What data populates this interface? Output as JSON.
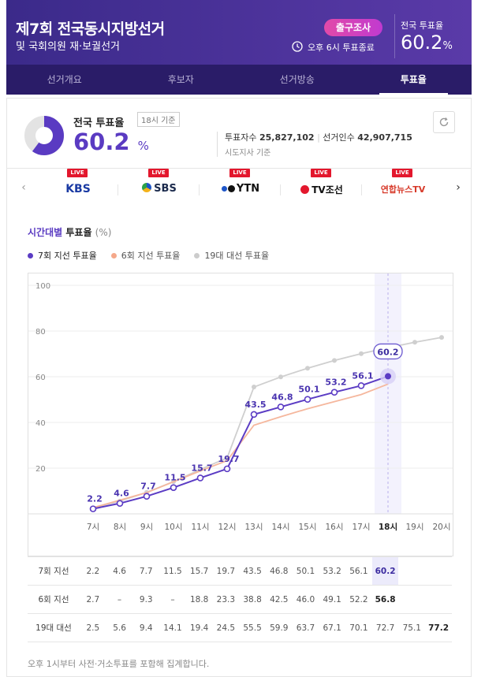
{
  "header": {
    "title": "제7회 전국동시지방선거",
    "subtitle": "및 국회의원 재·보궐선거",
    "exit_poll": "출구조사",
    "poll_close": "오후 6시 투표종료",
    "turnout_label": "전국 투표율",
    "turnout_value": "60.2",
    "turnout_unit": "%"
  },
  "tabs": [
    {
      "label": "선거개요",
      "active": false
    },
    {
      "label": "후보자",
      "active": false
    },
    {
      "label": "선거방송",
      "active": false
    },
    {
      "label": "투표율",
      "active": true
    }
  ],
  "summary": {
    "label": "전국 투표율",
    "basis": "18시 기준",
    "value": "60.2",
    "unit": "%",
    "donut_fraction": 0.602,
    "voters_label": "투표자수",
    "voters_value": "25,827,102",
    "electors_label": "선거인수",
    "electors_value": "42,907,715",
    "note": "시도지사 기준"
  },
  "broadcasters": {
    "live_label": "LIVE",
    "items": [
      {
        "name": "KBS",
        "color": "#1a3aa3"
      },
      {
        "name": "SBS",
        "color": "#1b2a4c"
      },
      {
        "name": "YTN",
        "color": "#111111"
      },
      {
        "name": "TV조선",
        "color": "#111111"
      },
      {
        "name": "연합뉴스TV",
        "color": "#d73a2a"
      }
    ]
  },
  "chart_section": {
    "title_accent": "시간대별",
    "title_rest": "투표율",
    "title_unit": "(%)",
    "legend": [
      {
        "name": "7회 지선 투표율",
        "color": "#5b3cc4"
      },
      {
        "name": "6회 지선 투표율",
        "color": "#f5a88a"
      },
      {
        "name": "19대 대선 투표율",
        "color": "#cccccc"
      }
    ],
    "footnote": "오후 1시부터 사전·거소투표를 포함해 집계합니다."
  },
  "chart_data": {
    "type": "line",
    "x": [
      "7시",
      "8시",
      "9시",
      "10시",
      "11시",
      "12시",
      "13시",
      "14시",
      "15시",
      "16시",
      "17시",
      "18시",
      "19시",
      "20시"
    ],
    "ylim": [
      0,
      100
    ],
    "yticks": [
      20,
      40,
      60,
      80,
      100
    ],
    "highlight_x": "18시",
    "highlight_value_label": "60.2",
    "series": [
      {
        "name": "7회 지선",
        "color": "#5b3cc4",
        "values": [
          2.2,
          4.6,
          7.7,
          11.5,
          15.7,
          19.7,
          43.5,
          46.8,
          50.1,
          53.2,
          56.1,
          60.2,
          null,
          null
        ]
      },
      {
        "name": "6회 지선",
        "color": "#f5b79d",
        "values": [
          2.7,
          null,
          9.3,
          null,
          18.8,
          23.3,
          38.8,
          42.5,
          46.0,
          49.1,
          52.2,
          56.8,
          null,
          null
        ]
      },
      {
        "name": "19대 대선",
        "color": "#cfcfcf",
        "values": [
          2.5,
          5.6,
          9.4,
          14.1,
          19.4,
          24.5,
          55.5,
          59.9,
          63.7,
          67.1,
          70.1,
          72.7,
          75.1,
          77.2
        ]
      }
    ]
  },
  "table": {
    "rows": [
      {
        "label": "7회 지선",
        "cells": [
          "2.2",
          "4.6",
          "7.7",
          "11.5",
          "15.7",
          "19.7",
          "43.5",
          "46.8",
          "50.1",
          "53.2",
          "56.1",
          "60.2",
          "",
          ""
        ]
      },
      {
        "label": "6회 지선",
        "cells": [
          "2.7",
          "–",
          "9.3",
          "–",
          "18.8",
          "23.3",
          "38.8",
          "42.5",
          "46.0",
          "49.1",
          "52.2",
          "56.8",
          "",
          ""
        ]
      },
      {
        "label": "19대 대선",
        "cells": [
          "2.5",
          "5.6",
          "9.4",
          "14.1",
          "19.4",
          "24.5",
          "55.5",
          "59.9",
          "63.7",
          "67.1",
          "70.1",
          "72.7",
          "75.1",
          "77.2"
        ]
      }
    ]
  }
}
